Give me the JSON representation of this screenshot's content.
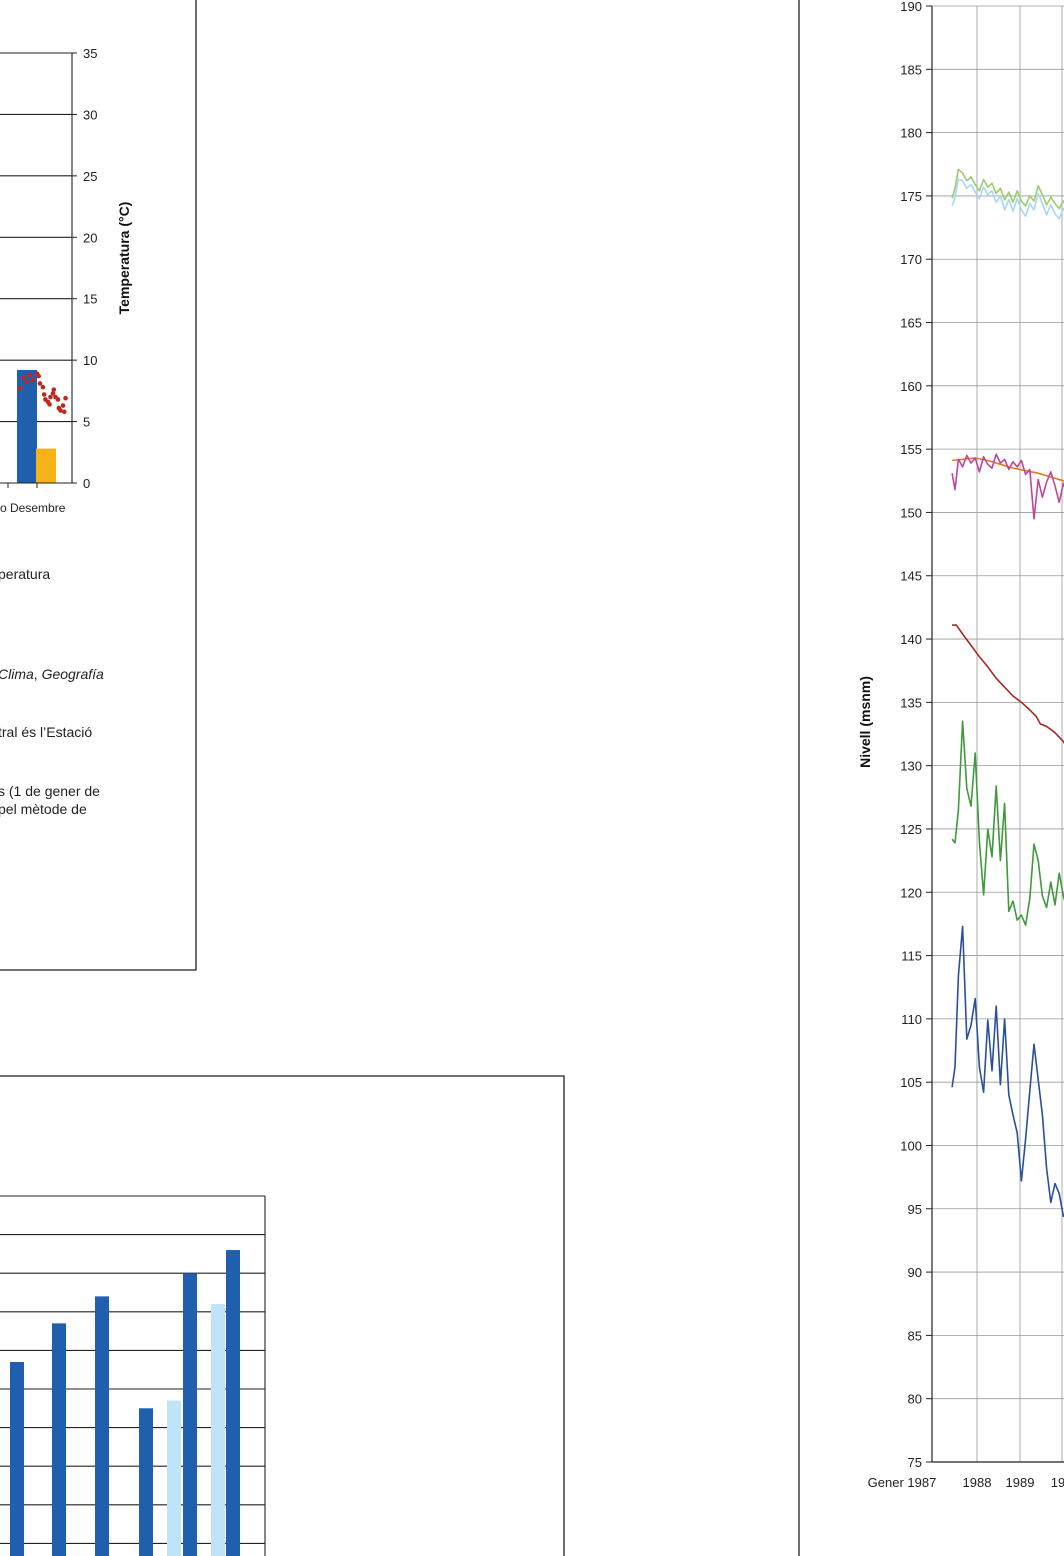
{
  "chart_data": [
    {
      "type": "bar",
      "visible_part": "cropped right end of a climate chart (precipitation bars + temperature scatter)",
      "categories": [
        "Desembre"
      ],
      "category_label_shown": "o Desembre",
      "series": [
        {
          "values": [
            9.2
          ],
          "color": "#1f5fae"
        },
        {
          "values": [
            2.8
          ],
          "color": "#f7b218"
        }
      ],
      "scatter_temperature": {
        "color": "#c0281c",
        "points": [
          [
            -4.0,
            7.7
          ],
          [
            -3.2,
            8.6
          ],
          [
            -2.5,
            8.2
          ],
          [
            -1.8,
            8.8
          ],
          [
            -1.0,
            8.4
          ],
          [
            0.0,
            8.9
          ],
          [
            0.7,
            8.1
          ],
          [
            1.4,
            7.8
          ],
          [
            2.0,
            6.8
          ],
          [
            2.6,
            6.6
          ],
          [
            3.2,
            7.0
          ],
          [
            3.8,
            7.3
          ],
          [
            4.4,
            7.0
          ],
          [
            5.0,
            6.8
          ],
          [
            5.6,
            5.9
          ],
          [
            6.2,
            6.3
          ],
          [
            6.8,
            6.9
          ],
          [
            0.4,
            8.7
          ],
          [
            1.7,
            7.2
          ],
          [
            3.0,
            6.4
          ],
          [
            4.0,
            7.6
          ],
          [
            5.2,
            6.1
          ],
          [
            6.5,
            5.8
          ]
        ]
      },
      "y2label": "Temperatura (°C)",
      "y2lim": [
        0,
        35
      ],
      "y2ticks": [
        0,
        5,
        10,
        15,
        20,
        25,
        30,
        35
      ],
      "grid": true
    },
    {
      "type": "bar",
      "visible_part": "cropped right end of a grouped bar chart",
      "series": [
        {
          "color": "#1f5fae",
          "values": [
            {
              "group": 1,
              "value": 5.7
            },
            {
              "group": 2,
              "value": 6.7
            },
            {
              "group": 3,
              "value": 7.4
            },
            {
              "group": 4,
              "value": 4.5
            },
            {
              "group": 5,
              "value": 8.0
            },
            {
              "group": 6,
              "value": 8.6
            }
          ]
        },
        {
          "color": "#bfe3f7",
          "values": [
            {
              "group": 5,
              "value": 4.7
            },
            {
              "group": 6,
              "value": 7.2
            }
          ]
        }
      ],
      "grid": true
    },
    {
      "type": "line",
      "visible_part": "cropped left part of a time-series chart of water levels",
      "ylabel": "Nivell (msnm)",
      "ylim": [
        75,
        190
      ],
      "yticks": [
        75,
        80,
        85,
        90,
        95,
        100,
        105,
        110,
        115,
        120,
        125,
        130,
        135,
        140,
        145,
        150,
        155,
        160,
        165,
        170,
        175,
        180,
        185,
        190
      ],
      "xticks": [
        "Gener 1987",
        "1988",
        "1989",
        "19"
      ],
      "grid": true,
      "series": [
        {
          "color": "#9ccc6e",
          "x": [
            1987.05,
            1987.12,
            1987.2,
            1987.3,
            1987.4,
            1987.5,
            1987.6,
            1987.7,
            1987.8,
            1987.9,
            1988.0,
            1988.1,
            1988.2,
            1988.3,
            1988.4,
            1988.5,
            1988.6,
            1988.7,
            1988.8,
            1988.9,
            1989.0,
            1989.1,
            1989.2,
            1989.3,
            1989.4,
            1989.5,
            1989.6,
            1989.7,
            1989.8,
            1989.9,
            1990.0
          ],
          "y": [
            174.8,
            175.6,
            177.1,
            176.8,
            176.2,
            176.5,
            175.9,
            175.4,
            176.3,
            175.7,
            176.0,
            175.2,
            175.6,
            174.7,
            175.3,
            174.5,
            175.4,
            174.6,
            174.2,
            175.0,
            174.6,
            175.8,
            175.1,
            174.3,
            174.9,
            174.4,
            174.0,
            174.6,
            174.2,
            174.1,
            174.0
          ]
        },
        {
          "color": "#a7d8f0",
          "x": [
            1987.05,
            1987.12,
            1987.2,
            1987.3,
            1987.4,
            1987.5,
            1987.6,
            1987.7,
            1987.8,
            1987.9,
            1988.0,
            1988.1,
            1988.2,
            1988.3,
            1988.4,
            1988.5,
            1988.6,
            1988.7,
            1988.8,
            1988.9,
            1989.0,
            1989.1,
            1989.2,
            1989.3,
            1989.4,
            1989.5,
            1989.6,
            1989.7,
            1989.8,
            1989.9,
            1990.0
          ],
          "y": [
            174.2,
            174.9,
            176.3,
            176.2,
            175.6,
            175.9,
            175.3,
            174.8,
            175.7,
            175.1,
            175.4,
            174.5,
            175.0,
            173.9,
            174.7,
            173.8,
            174.8,
            173.9,
            173.4,
            174.4,
            173.9,
            175.2,
            174.4,
            173.5,
            174.3,
            173.6,
            173.2,
            174.0,
            173.4,
            173.3,
            173.2
          ]
        },
        {
          "color": "#e07b24",
          "x": [
            1987.05,
            1987.3,
            1987.6,
            1987.9,
            1988.2,
            1988.5,
            1988.8,
            1989.1,
            1989.4,
            1989.7,
            1990.0
          ],
          "y": [
            154.1,
            154.2,
            154.3,
            154.1,
            153.8,
            153.5,
            153.3,
            153.1,
            152.8,
            152.5,
            152.2
          ]
        },
        {
          "color": "#c0469a",
          "x": [
            1987.05,
            1987.12,
            1987.2,
            1987.3,
            1987.4,
            1987.5,
            1987.6,
            1987.7,
            1987.8,
            1987.9,
            1988.0,
            1988.1,
            1988.2,
            1988.3,
            1988.4,
            1988.5,
            1988.6,
            1988.7,
            1988.8,
            1988.9,
            1989.0,
            1989.1,
            1989.2,
            1989.3,
            1989.4,
            1989.5,
            1989.6,
            1989.7,
            1989.8,
            1989.9,
            1990.0
          ],
          "y": [
            153.1,
            151.8,
            154.2,
            153.6,
            154.5,
            153.9,
            154.3,
            153.2,
            154.4,
            153.8,
            153.5,
            154.6,
            153.9,
            154.2,
            153.4,
            154.0,
            153.6,
            154.1,
            153.0,
            153.4,
            149.5,
            152.6,
            151.2,
            152.4,
            153.2,
            152.1,
            150.8,
            152.3,
            151.4,
            151.0,
            150.6
          ]
        },
        {
          "color": "#a52a1e",
          "x": [
            1987.05,
            1987.15,
            1987.3,
            1987.5,
            1987.7,
            1987.9,
            1988.1,
            1988.3,
            1988.5,
            1988.7,
            1988.9,
            1989.05,
            1989.15,
            1989.3,
            1989.5,
            1989.7,
            1989.85,
            1990.0
          ],
          "y": [
            141.1,
            141.1,
            140.4,
            139.5,
            138.6,
            137.8,
            136.9,
            136.2,
            135.5,
            135.0,
            134.4,
            133.9,
            133.3,
            133.1,
            132.6,
            131.9,
            131.1,
            130.5
          ]
        },
        {
          "color": "#3f9a3c",
          "x": [
            1987.05,
            1987.12,
            1987.2,
            1987.3,
            1987.4,
            1987.5,
            1987.6,
            1987.7,
            1987.8,
            1987.9,
            1988.0,
            1988.1,
            1988.2,
            1988.3,
            1988.4,
            1988.5,
            1988.6,
            1988.7,
            1988.8,
            1988.9,
            1989.0,
            1989.1,
            1989.2,
            1989.3,
            1989.4,
            1989.5,
            1989.6,
            1989.7,
            1989.8,
            1989.9,
            1990.0
          ],
          "y": [
            124.2,
            123.9,
            126.5,
            133.5,
            128.2,
            126.8,
            131.0,
            124.0,
            119.8,
            125.0,
            122.8,
            128.4,
            122.5,
            127.0,
            118.5,
            119.3,
            117.8,
            118.2,
            117.4,
            119.5,
            123.8,
            122.5,
            119.7,
            118.8,
            120.8,
            119.0,
            121.5,
            119.7,
            118.5,
            117.0,
            115.5
          ]
        },
        {
          "color": "#2a4f9e",
          "x": [
            1987.05,
            1987.12,
            1987.2,
            1987.3,
            1987.4,
            1987.5,
            1987.6,
            1987.7,
            1987.8,
            1987.9,
            1988.0,
            1988.1,
            1988.2,
            1988.3,
            1988.4,
            1988.5,
            1988.6,
            1988.7,
            1988.8,
            1988.9,
            1989.0,
            1989.1,
            1989.2,
            1989.3,
            1989.4,
            1989.5,
            1989.6,
            1989.7,
            1989.8,
            1989.9,
            1990.0
          ],
          "y": [
            104.6,
            106.2,
            113.4,
            117.3,
            108.4,
            109.5,
            111.6,
            106.2,
            104.2,
            109.9,
            105.9,
            111.0,
            104.8,
            110.0,
            104.0,
            102.4,
            101.0,
            97.2,
            100.5,
            104.3,
            108.0,
            105.2,
            102.4,
            98.2,
            95.5,
            97.0,
            96.2,
            94.4,
            95.0,
            94.0,
            93.5
          ]
        }
      ]
    }
  ],
  "texts": {
    "fragments": [
      {
        "id": "temp_legend",
        "text": "peratura",
        "italic": false
      },
      {
        "id": "source_clima",
        "text": "Clima",
        "italic": true
      },
      {
        "id": "source_sep",
        "text": ", ",
        "italic": false
      },
      {
        "id": "source_geo",
        "text": "Geografía",
        "italic": true
      },
      {
        "id": "estacio",
        "text": "tral és l’Estació",
        "italic": false
      },
      {
        "id": "gener_line",
        "text": "s (1 de gener de",
        "italic": false
      },
      {
        "id": "metode_line",
        "text": "pel mètode de",
        "italic": false
      }
    ]
  }
}
